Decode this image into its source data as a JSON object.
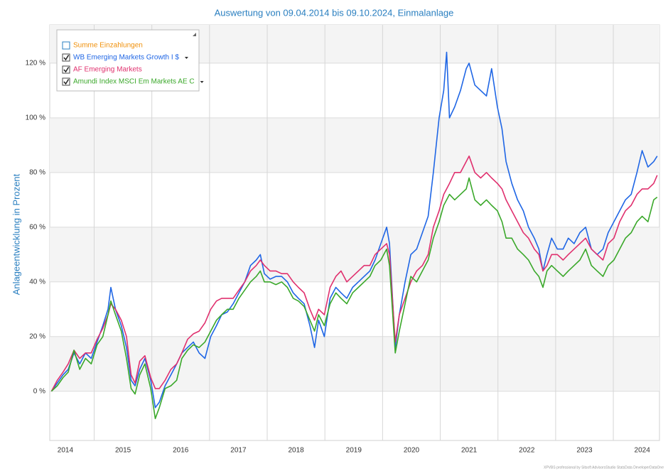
{
  "chart_data": {
    "type": "line",
    "title": "Auswertung von 09.04.2014 bis 09.10.2024, Einmalanlage",
    "y_label": "Anlageentwicklung  in Prozent",
    "footer": "XPVBS professional by Sitsoft AdvisorsStudio StatsData DeveloperDataOne",
    "legend": "top-left",
    "grid": true,
    "hidden_series": [
      {
        "name": "Summe Einzahlungen",
        "color": "#f0900a"
      }
    ],
    "xlim": [
      2014.23,
      2024.8
    ],
    "xticks": [
      {
        "value": 2014,
        "label": "2014"
      },
      {
        "value": 2015,
        "label": "2015"
      },
      {
        "value": 2016,
        "label": "2016"
      },
      {
        "value": 2017,
        "label": "2017"
      },
      {
        "value": 2018,
        "label": "2018"
      },
      {
        "value": 2019,
        "label": "2019"
      },
      {
        "value": 2020,
        "label": "2020"
      },
      {
        "value": 2021,
        "label": "2021"
      },
      {
        "value": 2022,
        "label": "2022"
      },
      {
        "value": 2023,
        "label": "2023"
      },
      {
        "value": 2024,
        "label": "2024"
      }
    ],
    "ylim": [
      -18,
      134
    ],
    "yticks": [
      {
        "value": 0,
        "label": "0 %"
      },
      {
        "value": 20,
        "label": "20 %"
      },
      {
        "value": 40,
        "label": "40 %"
      },
      {
        "value": 60,
        "label": "60 %"
      },
      {
        "value": 80,
        "label": "80 %"
      },
      {
        "value": 100,
        "label": "100 %"
      },
      {
        "value": 120,
        "label": "120 %"
      }
    ],
    "x": [
      2014.26,
      2014.36,
      2014.46,
      2014.55,
      2014.65,
      2014.75,
      2014.85,
      2014.95,
      2015.05,
      2015.15,
      2015.24,
      2015.29,
      2015.37,
      2015.47,
      2015.56,
      2015.64,
      2015.71,
      2015.79,
      2015.88,
      2015.98,
      2016.06,
      2016.13,
      2016.23,
      2016.33,
      2016.43,
      2016.52,
      2016.62,
      2016.72,
      2016.82,
      2016.92,
      2017.02,
      2017.12,
      2017.21,
      2017.31,
      2017.41,
      2017.51,
      2017.61,
      2017.71,
      2017.81,
      2017.88,
      2017.95,
      2018.05,
      2018.15,
      2018.25,
      2018.35,
      2018.45,
      2018.54,
      2018.64,
      2018.74,
      2018.82,
      2018.89,
      2018.99,
      2019.09,
      2019.19,
      2019.28,
      2019.38,
      2019.48,
      2019.58,
      2019.68,
      2019.78,
      2019.87,
      2019.97,
      2020.07,
      2020.12,
      2020.22,
      2020.29,
      2020.39,
      2020.49,
      2020.59,
      2020.69,
      2020.79,
      2020.88,
      2020.98,
      2021.06,
      2021.11,
      2021.16,
      2021.25,
      2021.35,
      2021.45,
      2021.5,
      2021.6,
      2021.7,
      2021.8,
      2021.89,
      2021.99,
      2022.07,
      2022.14,
      2022.24,
      2022.34,
      2022.44,
      2022.53,
      2022.63,
      2022.71,
      2022.78,
      2022.85,
      2022.93,
      2023.03,
      2023.13,
      2023.22,
      2023.32,
      2023.42,
      2023.52,
      2023.62,
      2023.72,
      2023.82,
      2023.91,
      2024.01,
      2024.11,
      2024.21,
      2024.31,
      2024.41,
      2024.5,
      2024.6,
      2024.7,
      2024.76
    ],
    "series": [
      {
        "name": "WB Emerging Markets Growth I $",
        "color": "#1f66e5",
        "values": [
          0,
          3,
          6,
          8,
          14,
          10,
          14,
          12,
          18,
          24,
          30,
          38,
          30,
          24,
          16,
          4,
          2,
          8,
          12,
          4,
          -6,
          -4,
          2,
          6,
          10,
          14,
          16,
          18,
          14,
          12,
          20,
          24,
          28,
          29,
          32,
          36,
          40,
          46,
          48,
          50,
          43,
          41,
          42,
          42,
          40,
          36,
          34,
          32,
          24,
          16,
          26,
          20,
          34,
          38,
          36,
          34,
          38,
          40,
          42,
          44,
          48,
          54,
          60,
          54,
          16,
          28,
          40,
          50,
          52,
          58,
          64,
          80,
          100,
          110,
          124,
          100,
          104,
          110,
          118,
          120,
          112,
          110,
          108,
          118,
          104,
          96,
          84,
          76,
          70,
          66,
          60,
          56,
          52,
          44,
          50,
          56,
          52,
          52,
          56,
          54,
          58,
          60,
          52,
          50,
          52,
          58,
          62,
          66,
          70,
          72,
          80,
          88,
          82,
          84,
          86
        ]
      },
      {
        "name": "AF Emerging Markets",
        "color": "#e0306e",
        "values": [
          0,
          4,
          7,
          10,
          15,
          12,
          14,
          14,
          19,
          23,
          28,
          32,
          30,
          26,
          20,
          6,
          3,
          11,
          13,
          5,
          1,
          1,
          4,
          8,
          10,
          14,
          19,
          21,
          22,
          25,
          30,
          33,
          34,
          34,
          34,
          37,
          40,
          44,
          46,
          48,
          46,
          44,
          44,
          43,
          43,
          40,
          38,
          36,
          30,
          26,
          30,
          28,
          38,
          42,
          44,
          40,
          42,
          44,
          46,
          46,
          50,
          52,
          54,
          50,
          18,
          28,
          34,
          40,
          44,
          46,
          50,
          60,
          66,
          72,
          74,
          76,
          80,
          80,
          84,
          86,
          80,
          78,
          80,
          78,
          76,
          74,
          70,
          66,
          62,
          58,
          56,
          52,
          50,
          44,
          46,
          50,
          50,
          48,
          50,
          52,
          54,
          56,
          52,
          50,
          48,
          54,
          56,
          62,
          66,
          68,
          72,
          74,
          74,
          76,
          79
        ]
      },
      {
        "name": "Amundi Index MSCI Em Markets AE C",
        "color": "#3aa82a",
        "values": [
          0,
          2,
          5,
          7,
          15,
          8,
          12,
          10,
          17,
          20,
          28,
          33,
          28,
          22,
          12,
          1,
          -1,
          6,
          10,
          1,
          -10,
          -6,
          1,
          2,
          4,
          12,
          15,
          17,
          16,
          18,
          22,
          26,
          28,
          30,
          30,
          34,
          37,
          40,
          42,
          44,
          40,
          40,
          39,
          40,
          38,
          34,
          33,
          31,
          26,
          22,
          28,
          24,
          32,
          36,
          34,
          32,
          36,
          38,
          40,
          42,
          46,
          48,
          52,
          46,
          14,
          22,
          32,
          42,
          40,
          44,
          48,
          56,
          62,
          68,
          70,
          72,
          70,
          72,
          74,
          78,
          70,
          68,
          70,
          68,
          66,
          62,
          56,
          56,
          52,
          50,
          48,
          44,
          42,
          38,
          44,
          46,
          44,
          42,
          44,
          46,
          48,
          52,
          46,
          44,
          42,
          46,
          48,
          52,
          56,
          58,
          62,
          64,
          62,
          70,
          71
        ]
      }
    ]
  }
}
